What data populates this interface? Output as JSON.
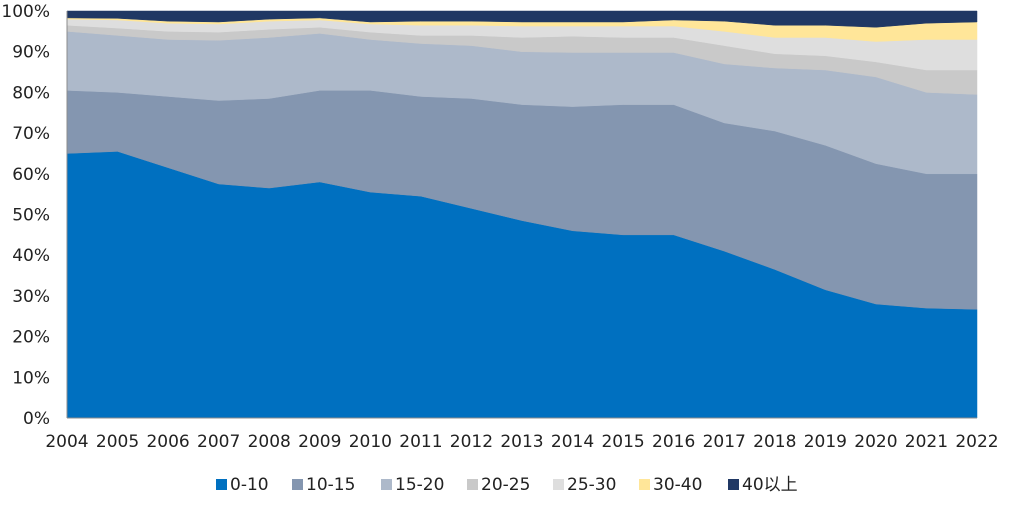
{
  "chart_data": {
    "type": "area",
    "stacked": true,
    "percent": true,
    "title": "",
    "xlabel": "",
    "ylabel": "",
    "ylim": [
      0,
      100
    ],
    "y_ticks": [
      "0%",
      "10%",
      "20%",
      "30%",
      "40%",
      "50%",
      "60%",
      "70%",
      "80%",
      "90%",
      "100%"
    ],
    "x": [
      "2004",
      "2005",
      "2006",
      "2007",
      "2008",
      "2009",
      "2010",
      "2011",
      "2012",
      "2013",
      "2014",
      "2015",
      "2016",
      "2017",
      "2018",
      "2019",
      "2020",
      "2021",
      "2022"
    ],
    "grid": false,
    "legend_position": "bottom",
    "series": [
      {
        "name": "0-10",
        "color": "#0070C0",
        "values": [
          65,
          65.5,
          61.5,
          57.5,
          56.5,
          58,
          55.5,
          54.5,
          51.5,
          48.5,
          46,
          45,
          45,
          41,
          36.5,
          31.5,
          28,
          27,
          26.7
        ]
      },
      {
        "name": "10-15",
        "color": "#8496B0",
        "values": [
          15.5,
          14.5,
          17.5,
          20.5,
          22,
          22.5,
          25,
          24.5,
          27,
          28.5,
          30.5,
          32,
          32,
          31.5,
          34,
          35.5,
          34.5,
          33,
          33.3
        ]
      },
      {
        "name": "15-20",
        "color": "#ADB9CA",
        "values": [
          14.5,
          14,
          14,
          14.8,
          15,
          14,
          12.5,
          13,
          13,
          13,
          13.3,
          12.8,
          12.8,
          14.5,
          15.5,
          18.5,
          21.3,
          20,
          19.5
        ]
      },
      {
        "name": "20-25",
        "color": "#C9C9C9",
        "values": [
          1.5,
          1.8,
          2,
          2,
          2,
          1.5,
          1.8,
          2,
          2.5,
          3.5,
          4,
          3.7,
          3.7,
          4.5,
          3.5,
          3.5,
          3.7,
          5.5,
          6
        ]
      },
      {
        "name": "25-30",
        "color": "#DEDEDE",
        "values": [
          1.5,
          2,
          2,
          2,
          2,
          1.8,
          2,
          2.5,
          2.5,
          2.8,
          2.5,
          2.8,
          2.8,
          3.5,
          4,
          4.5,
          5,
          7.5,
          7.5
        ]
      },
      {
        "name": "30-40",
        "color": "#FFE699",
        "values": [
          0.3,
          0.4,
          0.5,
          0.5,
          0.5,
          0.5,
          0.5,
          1,
          1,
          1,
          1,
          1,
          1.5,
          2.5,
          3,
          3,
          3.5,
          4,
          4.3
        ]
      },
      {
        "name": "40以上",
        "color": "#203864",
        "values": [
          1.7,
          1.8,
          2.5,
          2.7,
          2,
          1.7,
          2.7,
          2.5,
          2.5,
          2.7,
          2.7,
          2.7,
          2.2,
          2.5,
          3.5,
          3.5,
          4,
          3,
          2.7
        ]
      }
    ]
  }
}
